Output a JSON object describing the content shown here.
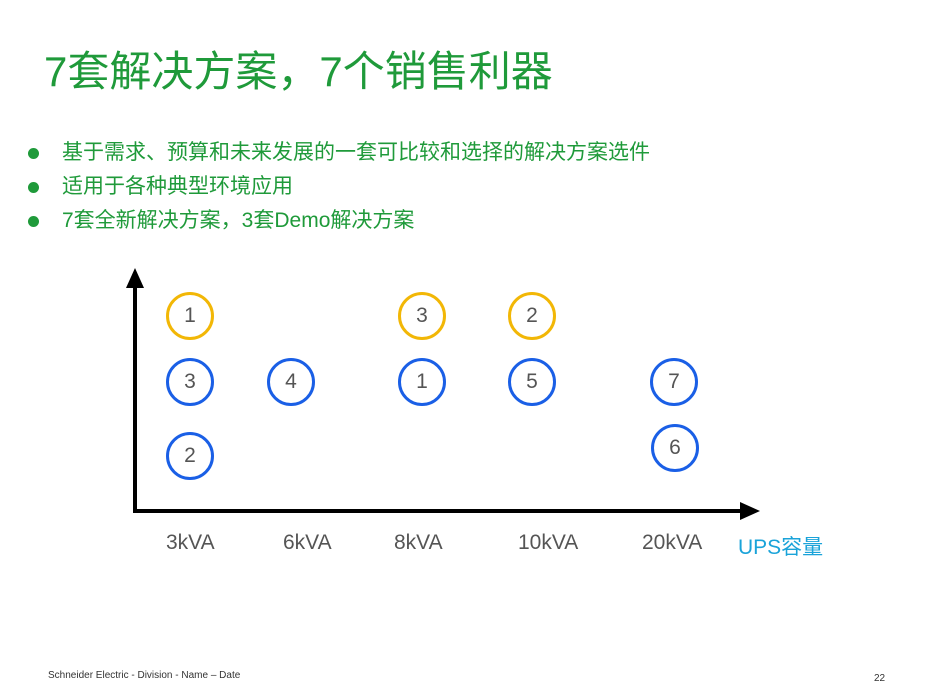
{
  "title": "7套解决方案，7个销售利器",
  "bullets": [
    "基于需求、预算和未来发展的一套可比较和选择的解决方案选件",
    "适用于各种典型环境应用",
    "7套全新解决方案，3套Demo解决方案"
  ],
  "diagram": {
    "x_axis_labels": [
      "3kVA",
      "6kVA",
      "8kVA",
      "10kVA",
      "20kVA"
    ],
    "x_axis_title": "UPS容量",
    "colors": {
      "demo": "#f2b706",
      "new": "#1a5fe6",
      "axis_title": "#1aa3d9"
    },
    "columns": [
      {
        "label": "3kVA",
        "demo": [
          "1"
        ],
        "new": [
          "3",
          "2"
        ]
      },
      {
        "label": "6kVA",
        "demo": [],
        "new": [
          "4"
        ]
      },
      {
        "label": "8kVA",
        "demo": [
          "3"
        ],
        "new": [
          "1"
        ]
      },
      {
        "label": "10kVA",
        "demo": [
          "2"
        ],
        "new": [
          "5"
        ]
      },
      {
        "label": "20kVA",
        "demo": [],
        "new": [
          "7",
          "6"
        ]
      }
    ]
  },
  "footer": "Schneider Electric - Division - Name – Date",
  "page_number": "22"
}
